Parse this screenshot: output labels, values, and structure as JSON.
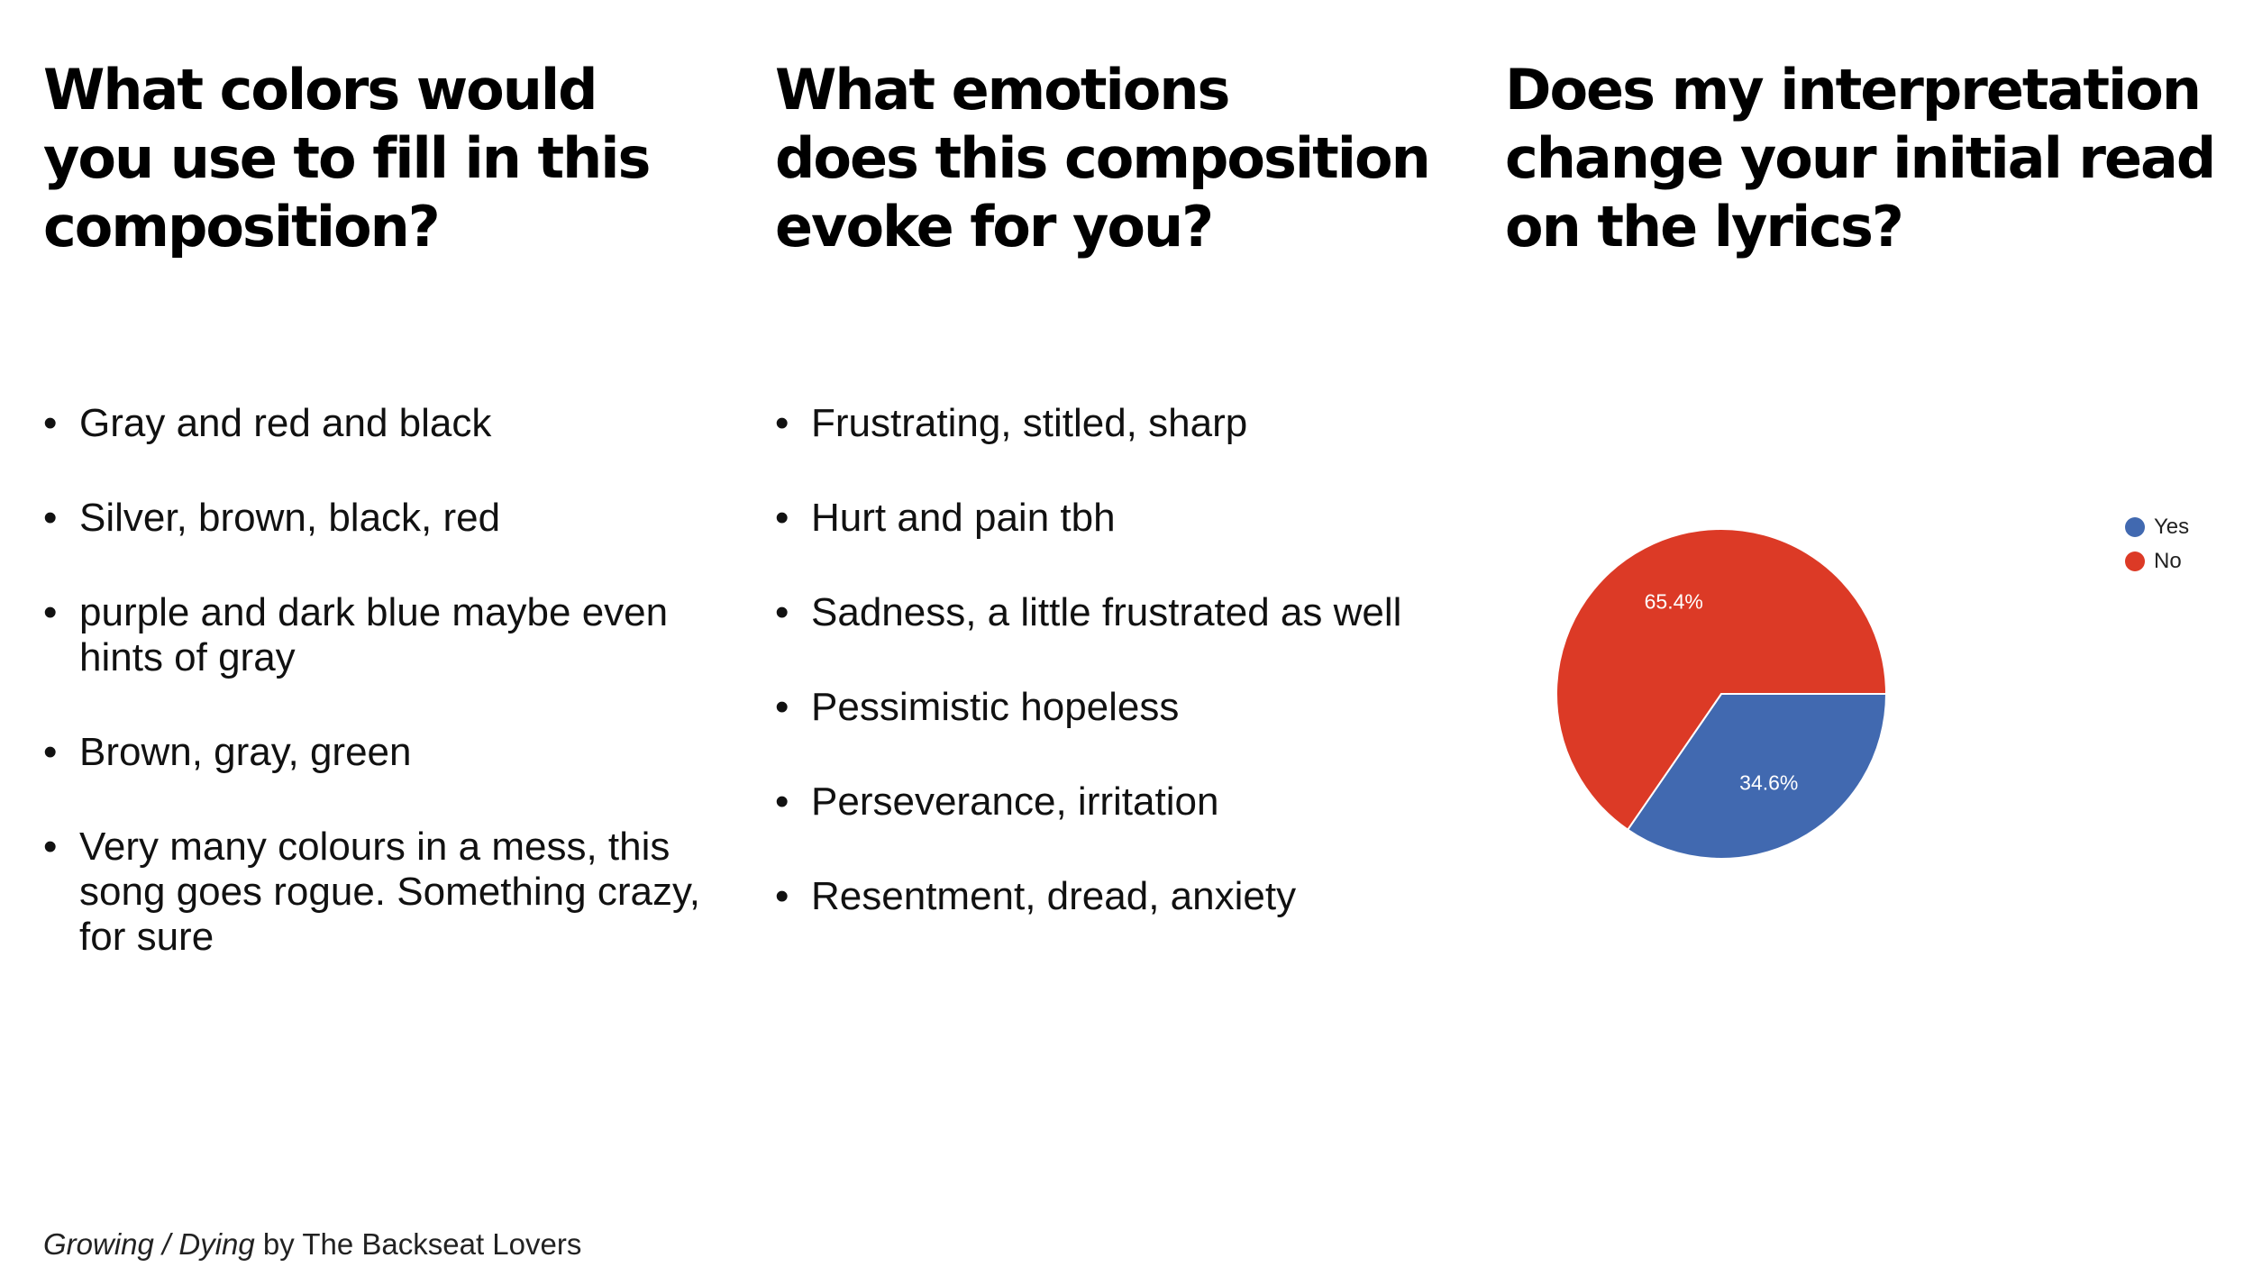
{
  "columns": [
    {
      "heading": [
        "What colors would",
        "you use to fill in this",
        "composition?"
      ],
      "items": [
        "Gray and red and black",
        "Silver, brown, black, red",
        "purple and dark blue maybe even hints of gray",
        "Brown, gray, green",
        "Very many colours in a mess, this song goes rogue. Something crazy, for sure"
      ]
    },
    {
      "heading": [
        "What emotions",
        "does this composition",
        "evoke for you?"
      ],
      "items": [
        "Frustrating, stitled, sharp",
        "Hurt and pain tbh",
        "Sadness, a little frustrated as well",
        "Pessimistic hopeless",
        "Perseverance, irritation",
        "Resentment, dread, anxiety"
      ]
    },
    {
      "heading": [
        "Does my interpretation",
        "change your initial read",
        "on the lyrics?"
      ]
    }
  ],
  "chart_data": {
    "type": "pie",
    "series": [
      {
        "name": "Yes",
        "value": 34.6,
        "label": "34.6%",
        "color": "#4169b0"
      },
      {
        "name": "No",
        "value": 65.4,
        "label": "65.4%",
        "color": "#dc3a26"
      }
    ],
    "legend_position": "top-right"
  },
  "caption": {
    "title": "Growing / Dying",
    "rest": " by The Backseat Lovers"
  }
}
